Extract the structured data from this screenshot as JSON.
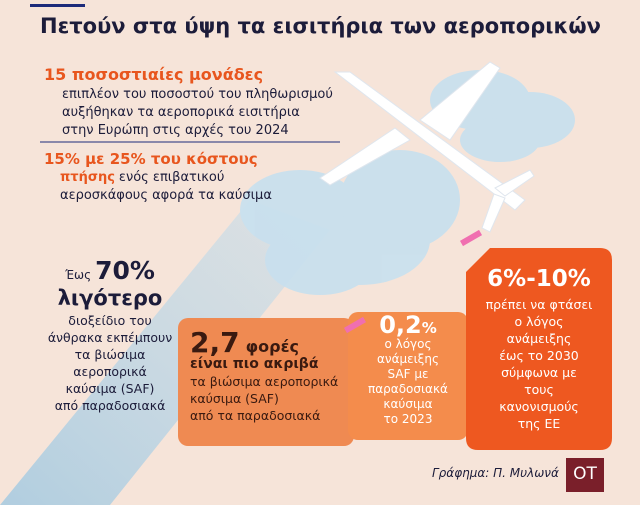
{
  "header": {
    "title": "Πετούν στα ύψη τα εισιτήρια των αεροπορικών"
  },
  "facts": [
    {
      "highlight": [
        "15 ποσοστιαίες μονάδες"
      ],
      "body": [
        "επιπλέον του ποσοστού του πληθωρισμού",
        "αυξήθηκαν τα αεροπορικά εισιτήρια",
        "στην Ευρώπη στις αρχές του 2024"
      ]
    },
    {
      "highlight": [
        "15% με 25% του κόστους",
        "πτήσης"
      ],
      "body": [
        "ενός επιβατικού",
        "αεροσκάφους αφορά τα καύσιμα"
      ]
    }
  ],
  "emissions": {
    "prefix": "Έως",
    "value": "70%",
    "emphasis": "λιγότερο",
    "body": [
      "διοξείδιο του",
      "άνθρακα εκπέμπουν",
      "τα βιώσιμα",
      "αεροπορικά",
      "καύσιμα (SAF)",
      "από παραδοσιακά"
    ]
  },
  "cans": [
    {
      "value": "2,7",
      "unit": "φορές",
      "emphasis": "είναι πιο ακριβά",
      "body": [
        "τα βιώσιμα αεροπορικά",
        "καύσιμα (SAF)",
        "από τα παραδοσιακά"
      ]
    },
    {
      "value": "0,2",
      "unit": "%",
      "body": [
        "ο λόγος",
        "ανάμειξης",
        "SAF με",
        "παραδοσιακά",
        "καύσιμα",
        "το 2023"
      ]
    },
    {
      "value": "6%-10%",
      "body": [
        "πρέπει να φτάσει",
        "ο λόγος",
        "ανάμειξης",
        "έως το 2030",
        "σύμφωνα με",
        "τους",
        "κανονισμούς",
        "της ΕΕ"
      ]
    }
  ],
  "footer": {
    "credit": "Γράφημα: Π. Μυλωνά",
    "logo": "OT"
  }
}
